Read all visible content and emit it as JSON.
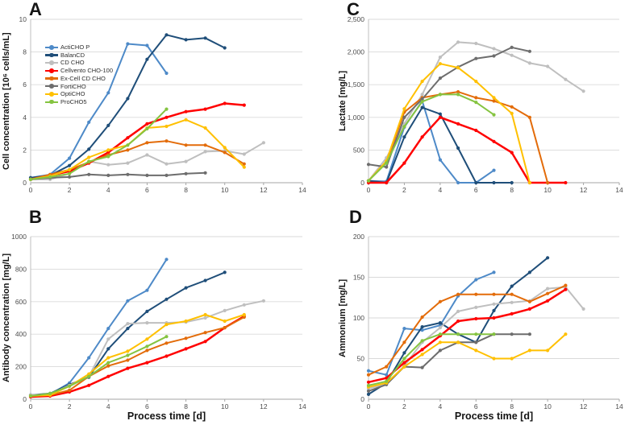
{
  "figure_type": "four-panel line chart of CHO cell culture media comparison",
  "x_axis_title": "Process time [d]",
  "series_names": [
    "ActiCHO P",
    "BalanCD",
    "CD CHO",
    "Cellvento CHO-100",
    "Ex-Cell CD CHO",
    "FortiCHO",
    "OptiCHO",
    "ProCHO5"
  ],
  "series_colors": {
    "ActiCHO P": "#4E8AC8",
    "BalanCD": "#1F4E79",
    "CD CHO": "#BFBFBF",
    "Cellvento CHO-100": "#FF0000",
    "Ex-Cell CD CHO": "#E36C0A",
    "FortiCHO": "#6D6D6D",
    "OptiCHO": "#FFC000",
    "ProCHO5": "#85C441"
  },
  "chart_data": [
    {
      "id": "A",
      "type": "line",
      "panel_label": "A",
      "ylabel": "Cell concentration [10⁶ cells/mL]",
      "xlabel": "",
      "xlim": [
        0,
        14
      ],
      "ylim": [
        0,
        10
      ],
      "x_ticks": [
        0,
        2,
        4,
        6,
        8,
        10,
        12,
        14
      ],
      "y_ticks": [
        {
          "label": "0",
          "v": 0
        },
        {
          "label": "2",
          "v": 2
        },
        {
          "label": "4",
          "v": 4
        },
        {
          "label": "6",
          "v": 6
        },
        {
          "label": "8",
          "v": 8
        },
        {
          "label": "10",
          "v": 10
        }
      ],
      "legend": true,
      "series": [
        {
          "name": "ActiCHO P",
          "values": [
            0.3,
            0.5,
            1.5,
            3.7,
            5.5,
            8.5,
            8.4,
            6.7
          ]
        },
        {
          "name": "BalanCD",
          "values": [
            0.3,
            0.45,
            1.05,
            2.05,
            3.5,
            5.15,
            7.55,
            9.05,
            8.75,
            8.85,
            8.25
          ]
        },
        {
          "name": "CD CHO",
          "values": [
            0.2,
            0.2,
            0.55,
            1.3,
            1.1,
            1.2,
            1.7,
            1.15,
            1.3,
            1.9,
            1.95,
            1.75,
            2.45
          ]
        },
        {
          "name": "Cellvento CHO-100",
          "values": [
            0.2,
            0.45,
            0.7,
            1.2,
            1.85,
            2.75,
            3.6,
            4.0,
            4.35,
            4.5,
            4.85,
            4.75
          ]
        },
        {
          "name": "Ex-Cell CD CHO",
          "values": [
            0.2,
            0.5,
            0.8,
            1.25,
            1.7,
            2.0,
            2.45,
            2.55,
            2.3,
            2.3,
            1.85,
            1.15
          ]
        },
        {
          "name": "FortiCHO",
          "values": [
            0.2,
            0.3,
            0.35,
            0.5,
            0.45,
            0.5,
            0.45,
            0.45,
            0.55,
            0.6
          ]
        },
        {
          "name": "OptiCHO",
          "values": [
            0.2,
            0.4,
            0.8,
            1.55,
            2.0,
            2.3,
            3.35,
            3.45,
            3.85,
            3.35,
            2.15,
            0.95
          ]
        },
        {
          "name": "ProCHO5",
          "values": [
            0.2,
            0.35,
            0.55,
            1.3,
            1.6,
            2.3,
            3.3,
            4.5
          ]
        }
      ]
    },
    {
      "id": "B",
      "type": "line",
      "panel_label": "B",
      "ylabel": "Antibody concentration [mg/L]",
      "xlabel": "Process time [d]",
      "xlim": [
        0,
        14
      ],
      "ylim": [
        0,
        1000
      ],
      "x_ticks": [
        0,
        2,
        4,
        6,
        8,
        10,
        12,
        14
      ],
      "y_ticks": [
        {
          "label": "0",
          "v": 0
        },
        {
          "label": "200",
          "v": 200
        },
        {
          "label": "400",
          "v": 400
        },
        {
          "label": "600",
          "v": 600
        },
        {
          "label": "800",
          "v": 800
        },
        {
          "label": "1000",
          "v": 1000
        }
      ],
      "legend": false,
      "series": [
        {
          "name": "ActiCHO P",
          "values": [
            25,
            30,
            100,
            255,
            435,
            605,
            670,
            860
          ]
        },
        {
          "name": "BalanCD",
          "values": [
            25,
            35,
            90,
            135,
            310,
            435,
            540,
            615,
            685,
            730,
            780
          ]
        },
        {
          "name": "CD CHO",
          "values": [
            25,
            30,
            85,
            140,
            370,
            465,
            470,
            470,
            475,
            500,
            545,
            580,
            605
          ]
        },
        {
          "name": "Cellvento CHO-100",
          "values": [
            15,
            20,
            45,
            85,
            140,
            190,
            225,
            265,
            310,
            355,
            440,
            510
          ]
        },
        {
          "name": "Ex-Cell CD CHO",
          "values": [
            20,
            25,
            55,
            140,
            205,
            240,
            300,
            345,
            375,
            410,
            440,
            505
          ]
        },
        {
          "name": "OptiCHO",
          "values": [
            20,
            25,
            80,
            155,
            255,
            295,
            370,
            460,
            480,
            520,
            480,
            520
          ]
        },
        {
          "name": "ProCHO5",
          "values": [
            20,
            35,
            80,
            140,
            225,
            270,
            325,
            385
          ]
        }
      ]
    },
    {
      "id": "C",
      "type": "line",
      "panel_label": "C",
      "ylabel": "Lactate [mg/L]",
      "xlabel": "",
      "xlim": [
        0,
        14
      ],
      "ylim": [
        0,
        2500
      ],
      "x_ticks": [
        0,
        2,
        4,
        6,
        8,
        10,
        12,
        14
      ],
      "y_ticks": [
        {
          "label": "0",
          "v": 0
        },
        {
          "label": "500",
          "v": 500
        },
        {
          "label": "1,000",
          "v": 1000
        },
        {
          "label": "1,500",
          "v": 1500
        },
        {
          "label": "2,000",
          "v": 2000
        },
        {
          "label": "2,500",
          "v": 2500
        }
      ],
      "legend": false,
      "series": [
        {
          "name": "ActiCHO P",
          "values": [
            30,
            20,
            850,
            1250,
            350,
            0,
            0,
            190
          ]
        },
        {
          "name": "BalanCD",
          "values": [
            30,
            0,
            700,
            1150,
            1050,
            530,
            0,
            0,
            0
          ]
        },
        {
          "name": "CD CHO",
          "values": [
            30,
            380,
            900,
            1350,
            1920,
            2150,
            2130,
            2050,
            1950,
            1830,
            1780,
            1580,
            1400
          ]
        },
        {
          "name": "Cellvento CHO-100",
          "values": [
            0,
            0,
            300,
            700,
            1000,
            900,
            800,
            630,
            460,
            0,
            0,
            0
          ]
        },
        {
          "name": "Ex-Cell CD CHO",
          "values": [
            30,
            310,
            1080,
            1300,
            1350,
            1390,
            1300,
            1250,
            1160,
            1000,
            0
          ]
        },
        {
          "name": "FortiCHO",
          "values": [
            280,
            240,
            1000,
            1280,
            1600,
            1770,
            1900,
            1940,
            2070,
            2010
          ]
        },
        {
          "name": "OptiCHO",
          "values": [
            30,
            330,
            1130,
            1550,
            1820,
            1760,
            1550,
            1300,
            1060,
            0
          ]
        },
        {
          "name": "ProCHO5",
          "values": [
            30,
            300,
            860,
            1240,
            1350,
            1350,
            1230,
            1040
          ]
        }
      ]
    },
    {
      "id": "D",
      "type": "line",
      "panel_label": "D",
      "ylabel": "Ammonium [mg/L]",
      "xlabel": "Process time [d]",
      "xlim": [
        0,
        14
      ],
      "ylim": [
        0,
        200
      ],
      "x_ticks": [
        0,
        2,
        4,
        6,
        8,
        10,
        12,
        14
      ],
      "y_ticks": [
        {
          "label": "0",
          "v": 0
        },
        {
          "label": "50",
          "v": 50
        },
        {
          "label": "100",
          "v": 100
        },
        {
          "label": "150",
          "v": 150
        },
        {
          "label": "200",
          "v": 200
        }
      ],
      "legend": false,
      "series": [
        {
          "name": "ActiCHO P",
          "values": [
            35,
            30,
            87,
            85,
            91,
            127,
            147,
            156
          ]
        },
        {
          "name": "BalanCD",
          "values": [
            6,
            20,
            57,
            89,
            94,
            80,
            70,
            109,
            139,
            156,
            174
          ]
        },
        {
          "name": "CD CHO",
          "values": [
            13,
            19,
            41,
            70,
            88,
            108,
            113,
            117,
            119,
            121,
            136,
            138,
            111
          ]
        },
        {
          "name": "Cellvento CHO-100",
          "values": [
            21,
            26,
            45,
            61,
            78,
            96,
            99,
            100,
            105,
            111,
            121,
            135
          ]
        },
        {
          "name": "Ex-Cell CD CHO",
          "values": [
            30,
            40,
            70,
            101,
            120,
            129,
            129,
            129,
            129,
            120,
            130,
            140
          ]
        },
        {
          "name": "FortiCHO",
          "values": [
            10,
            18,
            40,
            39,
            60,
            70,
            70,
            80,
            80,
            80
          ]
        },
        {
          "name": "OptiCHO",
          "values": [
            15,
            20,
            40,
            55,
            70,
            70,
            60,
            50,
            50,
            60,
            60,
            80
          ]
        },
        {
          "name": "ProCHO5",
          "values": [
            17,
            22,
            50,
            72,
            80,
            80,
            80,
            80
          ]
        }
      ]
    }
  ]
}
